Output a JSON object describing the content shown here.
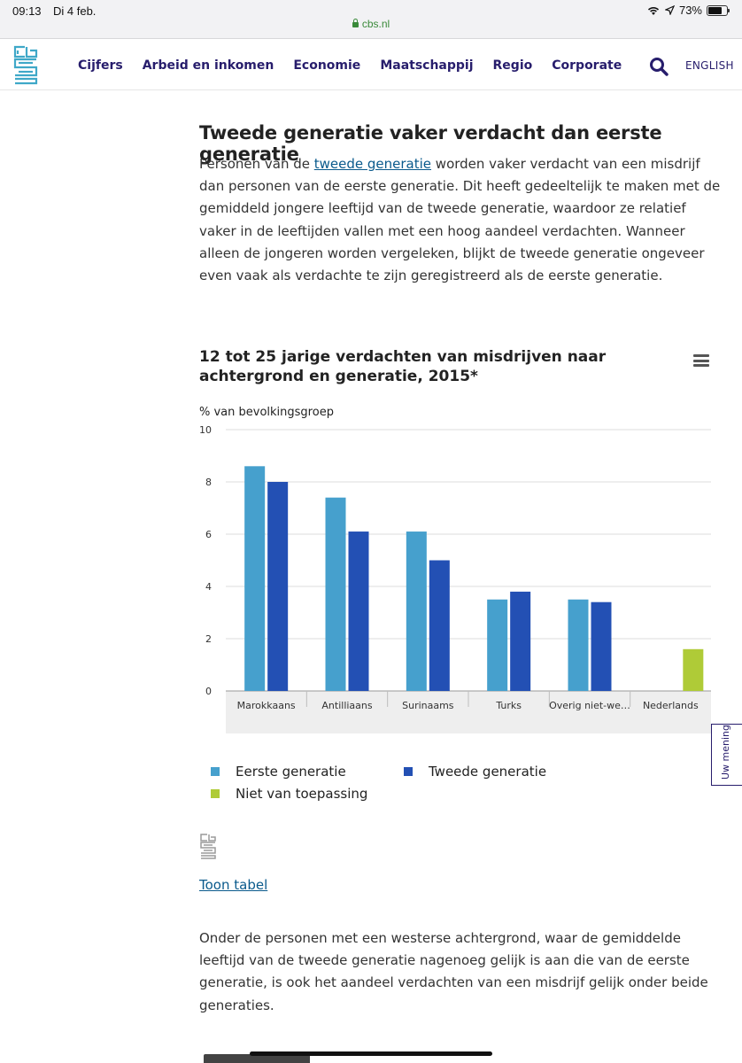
{
  "status": {
    "time": "09:13",
    "date": "Di 4 feb.",
    "battery": "73%",
    "battery_level": 0.73,
    "url": "cbs.nl"
  },
  "nav": {
    "items": [
      "Cijfers",
      "Arbeid en inkomen",
      "Economie",
      "Maatschappij",
      "Regio",
      "Corporate"
    ],
    "language": "ENGLISH"
  },
  "article": {
    "heading": "Tweede generatie vaker verdacht dan eerste generatie",
    "p1_before": "Personen van de ",
    "p1_link": "tweede generatie",
    "p1_after": " worden vaker verdacht van een misdrijf dan personen van de eerste generatie. Dit heeft gedeeltelijk te maken met de gemiddeld jongere leeftijd van de tweede generatie, waardoor ze relatief vaker in de leeftijden vallen met een hoog aandeel verdachten. Wanneer alleen de jongeren worden vergeleken, blijkt de tweede generatie ongeveer even vaak als verdachte te zijn geregistreerd als de eerste generatie.",
    "p2": "Onder de personen met een westerse achtergrond, waar de gemiddelde leeftijd van de tweede generatie nagenoeg gelijk is aan die van de eerste generatie, is ook het aandeel verdachten van een misdrijf gelijk onder beide generaties.",
    "toon_tabel": "Toon tabel",
    "feedback": "Uw mening"
  },
  "chart_data": {
    "type": "bar",
    "title": "12 tot 25 jarige verdachten van misdrijven naar achtergrond en generatie, 2015*",
    "ylabel": "% van bevolkingsgroep",
    "ylim": [
      0,
      10
    ],
    "yticks": [
      "0",
      "2",
      "4",
      "6",
      "8",
      "10"
    ],
    "categories": [
      "Marokkaans",
      "Antilliaans",
      "Surinaams",
      "Turks",
      "Overig niet-we…",
      "Nederlands"
    ],
    "series": [
      {
        "name": "Eerste generatie",
        "color": "#46a0cd",
        "values": [
          8.6,
          7.4,
          6.1,
          3.5,
          3.5,
          null
        ]
      },
      {
        "name": "Tweede generatie",
        "color": "#2350b4",
        "values": [
          8.0,
          6.1,
          5.0,
          3.8,
          3.4,
          null
        ]
      },
      {
        "name": "Niet van toepassing",
        "color": "#afcb37",
        "values": [
          null,
          null,
          null,
          null,
          null,
          1.6
        ]
      }
    ],
    "grid": true,
    "legend": "bottom"
  }
}
